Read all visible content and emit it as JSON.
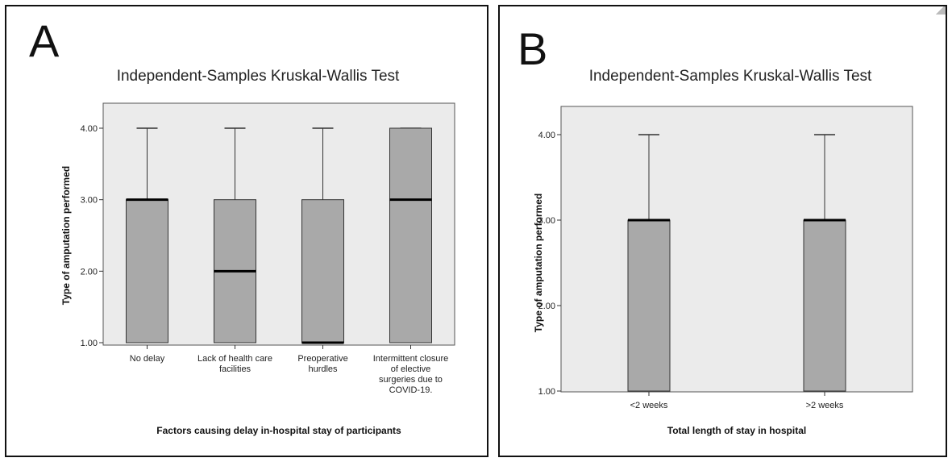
{
  "chart_data": [
    {
      "panel_label": "A",
      "type": "boxplot",
      "title": "Independent-Samples Kruskal-Wallis Test",
      "xlabel": "Factors causing delay in-hospital stay of participants",
      "ylabel": "Type of amputation performed",
      "ylim": [
        1,
        4
      ],
      "yticks": [
        "1.00",
        "2.00",
        "3.00",
        "4.00"
      ],
      "categories": [
        [
          "No delay"
        ],
        [
          "Lack of health care",
          "facilities"
        ],
        [
          "Preoperative",
          "hurdles"
        ],
        [
          "Intermittent closure",
          "of elective",
          "surgeries due to",
          "COVID-19."
        ]
      ],
      "boxes": [
        {
          "min": 1,
          "q1": 1,
          "median": 3,
          "q3": 3,
          "max": 4
        },
        {
          "min": 1,
          "q1": 1,
          "median": 2,
          "q3": 3,
          "max": 4
        },
        {
          "min": 1,
          "q1": 1,
          "median": 1,
          "q3": 3,
          "max": 4
        },
        {
          "min": 1,
          "q1": 1,
          "median": 3,
          "q3": 4,
          "max": 4
        }
      ],
      "colors": {
        "plot_bg": "#ebebeb",
        "box_fill": "#a9a9a9",
        "median": "#000000"
      }
    },
    {
      "panel_label": "B",
      "type": "boxplot",
      "title": "Independent-Samples Kruskal-Wallis Test",
      "xlabel": "Total length of stay in hospital",
      "ylabel": "Type of amputation performed",
      "ylim": [
        1,
        4
      ],
      "yticks": [
        "1.00",
        "2.00",
        "3.00",
        "4.00"
      ],
      "categories": [
        [
          "<2 weeks"
        ],
        [
          ">2 weeks"
        ]
      ],
      "boxes": [
        {
          "min": 1,
          "q1": 1,
          "median": 3,
          "q3": 3,
          "max": 4
        },
        {
          "min": 1,
          "q1": 1,
          "median": 3,
          "q3": 3,
          "max": 4
        }
      ],
      "colors": {
        "plot_bg": "#ebebeb",
        "box_fill": "#a9a9a9",
        "median": "#000000"
      }
    }
  ]
}
